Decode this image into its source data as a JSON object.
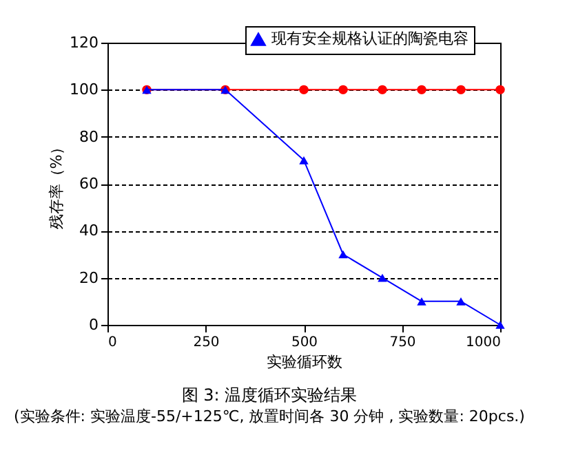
{
  "chart_data": {
    "type": "line",
    "title": "图 3: 温度循环实验结果",
    "annotations": [
      "(实验条件: 实验温度-55/+125℃, 放置时间各 30 分钟 , 实验数量: 20pcs.)"
    ],
    "xlabel": "实验循环数",
    "ylabel": "残存率（%）",
    "x": [
      100,
      300,
      500,
      600,
      700,
      800,
      900,
      1000
    ],
    "series": [
      {
        "color": "#ff0000",
        "marker": "circle",
        "values": [
          100,
          100,
          100,
          100,
          100,
          100,
          100,
          100
        ]
      },
      {
        "name": "现有安全规格认证的陶瓷电容",
        "color": "#0000ff",
        "marker": "triangle",
        "values": [
          100,
          100,
          70,
          30,
          20,
          10,
          10,
          0
        ]
      }
    ],
    "xlim": [
      0,
      1000
    ],
    "xticks": [
      0,
      250,
      500,
      750,
      1000
    ],
    "ylim": [
      0,
      120
    ],
    "yticks": [
      0,
      20,
      40,
      60,
      80,
      100,
      120
    ],
    "grid": "y",
    "legend": "top right",
    "line_style": "solid"
  }
}
